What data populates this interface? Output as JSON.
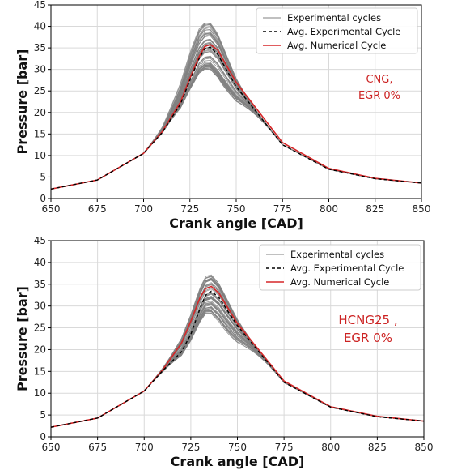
{
  "chart_data": [
    {
      "type": "line",
      "xlabel": "Crank angle [CAD]",
      "ylabel": "Pressure [bar]",
      "xlim": [
        650,
        850
      ],
      "ylim": [
        0,
        45
      ],
      "xticks": [
        650,
        675,
        700,
        725,
        750,
        775,
        800,
        825,
        850
      ],
      "yticks": [
        0,
        5,
        10,
        15,
        20,
        25,
        30,
        35,
        40,
        45
      ],
      "grid": true,
      "legend_position": "top-right",
      "annotation": [
        "CNG,",
        "EGR 0%"
      ],
      "colors": {
        "experimental": "#808080",
        "avg_experimental": "#000000",
        "avg_numerical": "#d62728"
      },
      "experimental_peak_range": [
        30,
        41
      ],
      "experimental_peak_angle_range": [
        731,
        740
      ],
      "series": [
        {
          "name": "Experimental cycles",
          "style": "solid-gray-bundle",
          "x": [
            650,
            675,
            700,
            710,
            720,
            725,
            730,
            733,
            736,
            740,
            750,
            775,
            800,
            825,
            850
          ],
          "y": [
            2.2,
            4.3,
            10.5,
            15.5,
            23.0,
            28.5,
            33.5,
            35.0,
            35.3,
            33.5,
            26.0,
            12.5,
            6.8,
            4.6,
            3.6
          ]
        },
        {
          "name": "Avg. Experimental Cycle",
          "style": "dashed",
          "x": [
            650,
            675,
            700,
            710,
            720,
            725,
            730,
            733,
            736,
            740,
            750,
            775,
            800,
            825,
            850
          ],
          "y": [
            2.2,
            4.3,
            10.5,
            15.3,
            22.0,
            27.5,
            32.5,
            34.8,
            35.2,
            33.5,
            26.0,
            12.5,
            6.8,
            4.6,
            3.6
          ]
        },
        {
          "name": "Avg. Numerical Cycle",
          "style": "solid-red",
          "x": [
            650,
            675,
            700,
            710,
            720,
            725,
            730,
            733,
            736,
            740,
            750,
            775,
            800,
            825,
            850
          ],
          "y": [
            2.2,
            4.3,
            10.5,
            15.5,
            22.5,
            28.0,
            33.0,
            35.3,
            35.8,
            34.5,
            27.0,
            13.0,
            7.0,
            4.7,
            3.6
          ]
        }
      ]
    },
    {
      "type": "line",
      "xlabel": "Crank angle [CAD]",
      "ylabel": "Pressure [bar]",
      "xlim": [
        650,
        850
      ],
      "ylim": [
        0,
        45
      ],
      "xticks": [
        650,
        675,
        700,
        725,
        750,
        775,
        800,
        825,
        850
      ],
      "yticks": [
        0,
        5,
        10,
        15,
        20,
        25,
        30,
        35,
        40,
        45
      ],
      "grid": true,
      "legend_position": "top-right",
      "annotation": [
        "HCNG25 ,",
        "EGR 0%"
      ],
      "colors": {
        "experimental": "#808080",
        "avg_experimental": "#000000",
        "avg_numerical": "#d62728"
      },
      "experimental_peak_range": [
        28,
        37.5
      ],
      "experimental_peak_angle_range": [
        732,
        742
      ],
      "series": [
        {
          "name": "Experimental cycles",
          "style": "solid-gray-bundle",
          "x": [
            650,
            675,
            700,
            710,
            720,
            725,
            730,
            733,
            736,
            740,
            750,
            775,
            800,
            825,
            850
          ],
          "y": [
            2.2,
            4.3,
            10.5,
            15.3,
            20.5,
            25.0,
            30.5,
            33.0,
            33.5,
            32.0,
            25.5,
            12.5,
            6.8,
            4.6,
            3.6
          ]
        },
        {
          "name": "Avg. Experimental Cycle",
          "style": "dashed",
          "x": [
            650,
            675,
            700,
            710,
            720,
            725,
            730,
            733,
            736,
            740,
            750,
            775,
            800,
            825,
            850
          ],
          "y": [
            2.2,
            4.3,
            10.5,
            15.2,
            19.5,
            23.5,
            29.5,
            32.5,
            33.4,
            32.0,
            25.5,
            12.5,
            6.8,
            4.6,
            3.6
          ]
        },
        {
          "name": "Avg. Numerical Cycle",
          "style": "solid-red",
          "x": [
            650,
            675,
            700,
            710,
            720,
            725,
            730,
            733,
            736,
            740,
            750,
            775,
            800,
            825,
            850
          ],
          "y": [
            2.2,
            4.3,
            10.5,
            15.4,
            21.5,
            26.5,
            32.0,
            34.0,
            34.5,
            33.0,
            26.0,
            12.8,
            6.9,
            4.7,
            3.6
          ]
        }
      ]
    }
  ]
}
